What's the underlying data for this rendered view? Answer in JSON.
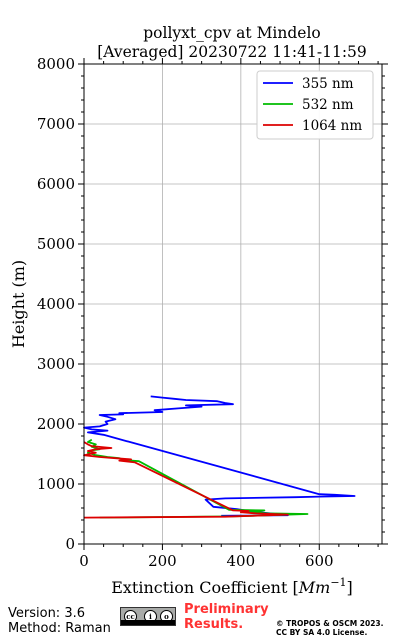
{
  "chart_data": {
    "type": "line",
    "title": "pollyxt_cpv at Mindelo",
    "subtitle": "[Averaged] 20230722 11:41-11:59",
    "xlabel": "Extinction Coefficient [",
    "xlabel_unit_base": "Mm",
    "xlabel_unit_exp": "−1",
    "xlabel_suffix": "]",
    "ylabel": "Height (m)",
    "xlim": [
      0,
      760
    ],
    "ylim": [
      0,
      8000
    ],
    "xticks": [
      0,
      200,
      400,
      600
    ],
    "yticks": [
      0,
      1000,
      2000,
      3000,
      4000,
      5000,
      6000,
      7000,
      8000
    ],
    "grid": true,
    "legend_position": "top-right",
    "series": [
      {
        "name": "355 nm",
        "color": "#0000ff",
        "points": [
          [
            350,
            470
          ],
          [
            520,
            480
          ],
          [
            430,
            540
          ],
          [
            390,
            580
          ],
          [
            330,
            620
          ],
          [
            320,
            680
          ],
          [
            310,
            740
          ],
          [
            360,
            760
          ],
          [
            540,
            780
          ],
          [
            600,
            790
          ],
          [
            690,
            800
          ],
          [
            640,
            820
          ],
          [
            600,
            830
          ],
          [
            50,
            1820
          ],
          [
            10,
            1860
          ],
          [
            60,
            1890
          ],
          [
            20,
            1910
          ],
          [
            0,
            1940
          ],
          [
            40,
            1960
          ],
          [
            60,
            2000
          ],
          [
            55,
            2040
          ],
          [
            80,
            2080
          ],
          [
            60,
            2120
          ],
          [
            40,
            2150
          ],
          [
            100,
            2160
          ],
          [
            90,
            2180
          ],
          [
            200,
            2200
          ],
          [
            180,
            2230
          ],
          [
            240,
            2260
          ],
          [
            300,
            2290
          ],
          [
            260,
            2310
          ],
          [
            380,
            2330
          ],
          [
            360,
            2350
          ],
          [
            340,
            2380
          ],
          [
            260,
            2400
          ],
          [
            230,
            2420
          ],
          [
            200,
            2440
          ],
          [
            170,
            2460
          ]
        ]
      },
      {
        "name": "532 nm",
        "color": "#00bb00",
        "points": [
          [
            40,
            440
          ],
          [
            380,
            460
          ],
          [
            570,
            500
          ],
          [
            470,
            510
          ],
          [
            420,
            530
          ],
          [
            450,
            550
          ],
          [
            460,
            560
          ],
          [
            370,
            570
          ],
          [
            140,
            1380
          ],
          [
            100,
            1400
          ],
          [
            90,
            1430
          ],
          [
            60,
            1450
          ],
          [
            30,
            1480
          ],
          [
            10,
            1520
          ],
          [
            20,
            1560
          ],
          [
            40,
            1580
          ],
          [
            20,
            1620
          ],
          [
            30,
            1660
          ],
          [
            10,
            1700
          ],
          [
            20,
            1740
          ]
        ]
      },
      {
        "name": "1064 nm",
        "color": "#dd0000",
        "points": [
          [
            0,
            440
          ],
          [
            360,
            455
          ],
          [
            520,
            490
          ],
          [
            440,
            510
          ],
          [
            400,
            530
          ],
          [
            420,
            550
          ],
          [
            380,
            560
          ],
          [
            130,
            1360
          ],
          [
            90,
            1390
          ],
          [
            120,
            1410
          ],
          [
            80,
            1430
          ],
          [
            40,
            1450
          ],
          [
            0,
            1480
          ],
          [
            30,
            1520
          ],
          [
            10,
            1550
          ],
          [
            30,
            1580
          ],
          [
            70,
            1600
          ],
          [
            20,
            1630
          ],
          [
            10,
            1660
          ],
          [
            0,
            1700
          ]
        ]
      }
    ]
  },
  "footer": {
    "version": "Version: 3.6",
    "method": "Method: Raman",
    "preliminary_line1": "Preliminary",
    "preliminary_line2": "Results.",
    "copyright_line1": "© TROPOS & OSCM 2023.",
    "copyright_line2": "CC BY SA 4.0 License.",
    "license_badge": "cc-by-sa-badge"
  }
}
